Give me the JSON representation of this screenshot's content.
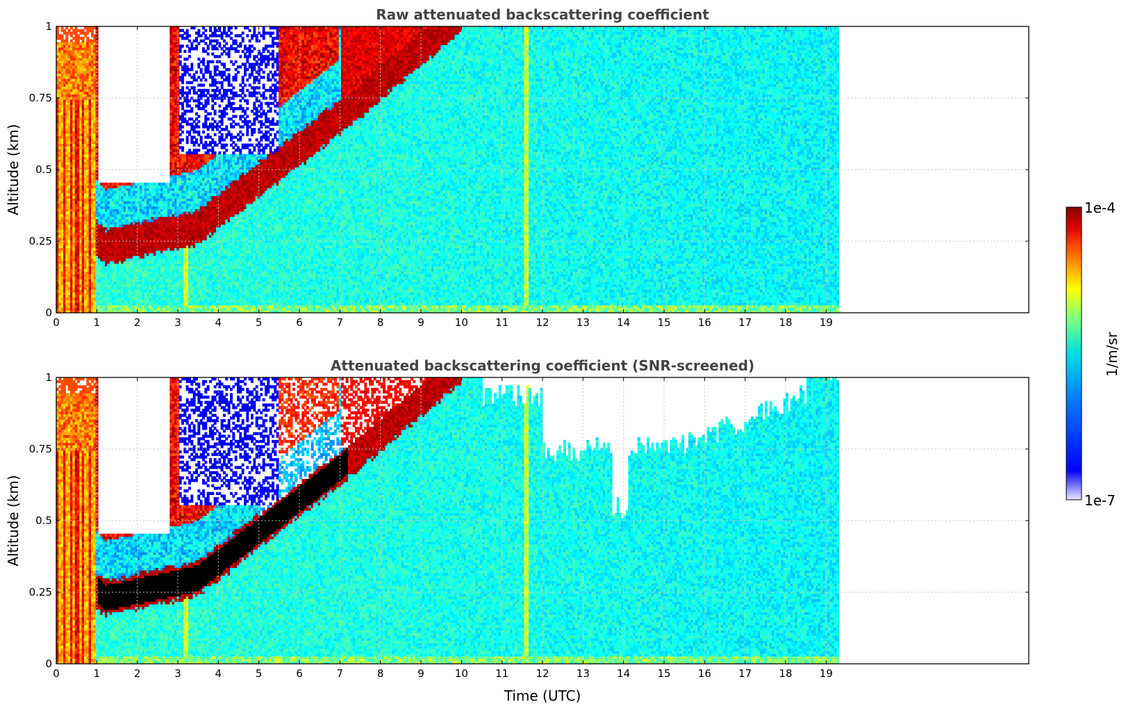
{
  "chart_data": [
    {
      "type": "heatmap",
      "title": "Raw attenuated backscattering coefficient",
      "xlabel": "",
      "ylabel": "Altitude (km)",
      "xlim": [
        0,
        24
      ],
      "ylim": [
        0,
        1
      ],
      "x_ticks": [
        "0",
        "1",
        "2",
        "3",
        "4",
        "5",
        "6",
        "7",
        "8",
        "9",
        "10",
        "11",
        "12",
        "13",
        "14",
        "15",
        "16",
        "17",
        "18",
        "19"
      ],
      "y_ticks": [
        "0",
        "0.25",
        "0.5",
        "0.75",
        "1"
      ],
      "data_end_time": 19.3,
      "grid": true,
      "screening": "none"
    },
    {
      "type": "heatmap",
      "title": "Attenuated backscattering coefficient (SNR-screened)",
      "xlabel": "Time (UTC)",
      "ylabel": "Altitude (km)",
      "xlim": [
        0,
        24
      ],
      "ylim": [
        0,
        1
      ],
      "x_ticks": [
        "0",
        "1",
        "2",
        "3",
        "4",
        "5",
        "6",
        "7",
        "8",
        "9",
        "10",
        "11",
        "12",
        "13",
        "14",
        "15",
        "16",
        "17",
        "18",
        "19"
      ],
      "y_ticks": [
        "0",
        "0.25",
        "0.5",
        "0.75",
        "1"
      ],
      "data_end_time": 19.3,
      "grid": true,
      "screening": "SNR"
    }
  ],
  "colorbar": {
    "label": "1/m/sr",
    "max_label": "1e-4",
    "min_label": "1e-7",
    "colormap": "jet",
    "scale": "log"
  }
}
